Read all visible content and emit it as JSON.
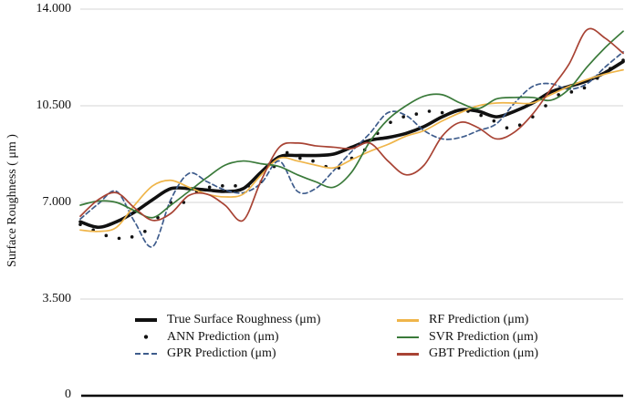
{
  "figure": {
    "background": "#ffffff",
    "gridline_color": "#d4d4d4",
    "axis_color": "#000000"
  },
  "chart_data": {
    "type": "line",
    "title": "",
    "xlabel": "",
    "ylabel": "Surface Roughness ( μm )",
    "ylim": [
      0,
      14
    ],
    "yticks": [
      "0",
      "3.500",
      "7.000",
      "10.500",
      "14.000"
    ],
    "x_axis_labels_visible": false,
    "grid": "horizontal",
    "legend_position": "bottom-center, two columns",
    "series": [
      {
        "label": "True Surface Roughness (μm)",
        "color": "#111111",
        "style": "thick",
        "values": [
          6.3,
          6.1,
          6.3,
          6.65,
          7.1,
          7.5,
          7.5,
          7.45,
          7.4,
          7.5,
          8.1,
          8.65,
          8.7,
          8.7,
          8.75,
          9.0,
          9.25,
          9.35,
          9.5,
          9.75,
          10.1,
          10.35,
          10.3,
          10.1,
          10.3,
          10.6,
          11.0,
          11.2,
          11.4,
          11.7,
          12.1
        ]
      },
      {
        "label": "ANN Prediction (μm)",
        "color": "#111111",
        "style": "dots",
        "values": [
          6.2,
          6.0,
          5.8,
          5.7,
          5.75,
          5.95,
          6.45,
          7.0,
          7.0,
          7.4,
          7.55,
          7.6,
          7.6,
          7.6,
          7.75,
          8.3,
          8.8,
          8.6,
          8.5,
          8.3,
          8.25,
          8.6,
          8.9,
          9.5,
          9.9,
          10.1,
          10.2,
          10.3,
          10.25,
          10.3,
          10.3,
          10.15,
          9.95,
          9.7,
          9.8,
          10.1,
          10.5,
          10.9,
          11.0,
          11.15,
          11.5,
          11.85,
          12.15
        ]
      },
      {
        "label": "GPR Prediction (μm)",
        "color": "#3E5C8C",
        "style": "dashed",
        "values": [
          6.4,
          6.95,
          7.4,
          6.3,
          5.4,
          7.1,
          8.05,
          7.75,
          7.45,
          7.35,
          7.7,
          8.5,
          7.4,
          7.5,
          8.15,
          8.85,
          9.5,
          10.25,
          10.15,
          9.6,
          9.3,
          9.35,
          9.6,
          9.85,
          10.6,
          11.2,
          11.3,
          11.1,
          11.3,
          11.9,
          12.45
        ]
      },
      {
        "label": "RF Prediction (μm)",
        "color": "#EFB54A",
        "style": "line",
        "values": [
          6.0,
          5.95,
          6.1,
          6.9,
          7.6,
          7.8,
          7.55,
          7.3,
          7.2,
          7.3,
          8.0,
          8.6,
          8.5,
          8.35,
          8.25,
          8.55,
          8.85,
          9.1,
          9.4,
          9.6,
          9.95,
          10.25,
          10.5,
          10.6,
          10.6,
          10.6,
          10.9,
          11.2,
          11.45,
          11.65,
          11.8
        ]
      },
      {
        "label": "SVR Prediction (μm)",
        "color": "#3A7A3A",
        "style": "line",
        "values": [
          6.9,
          7.05,
          7.0,
          6.7,
          6.45,
          6.9,
          7.4,
          7.9,
          8.35,
          8.5,
          8.4,
          8.3,
          8.0,
          7.75,
          7.55,
          8.1,
          9.2,
          10.0,
          10.5,
          10.85,
          10.9,
          10.6,
          10.4,
          10.75,
          10.8,
          10.8,
          10.7,
          11.1,
          11.9,
          12.6,
          13.2
        ]
      },
      {
        "label": "GBT Prediction (μm)",
        "color": "#A84334",
        "style": "line",
        "values": [
          6.5,
          7.1,
          7.35,
          6.8,
          6.35,
          6.6,
          7.25,
          7.3,
          6.9,
          6.35,
          7.8,
          9.0,
          9.15,
          9.05,
          9.0,
          8.95,
          9.15,
          8.5,
          8.0,
          8.35,
          9.4,
          9.9,
          9.7,
          9.3,
          9.55,
          10.2,
          11.1,
          12.0,
          13.25,
          12.95,
          12.4
        ]
      }
    ]
  }
}
